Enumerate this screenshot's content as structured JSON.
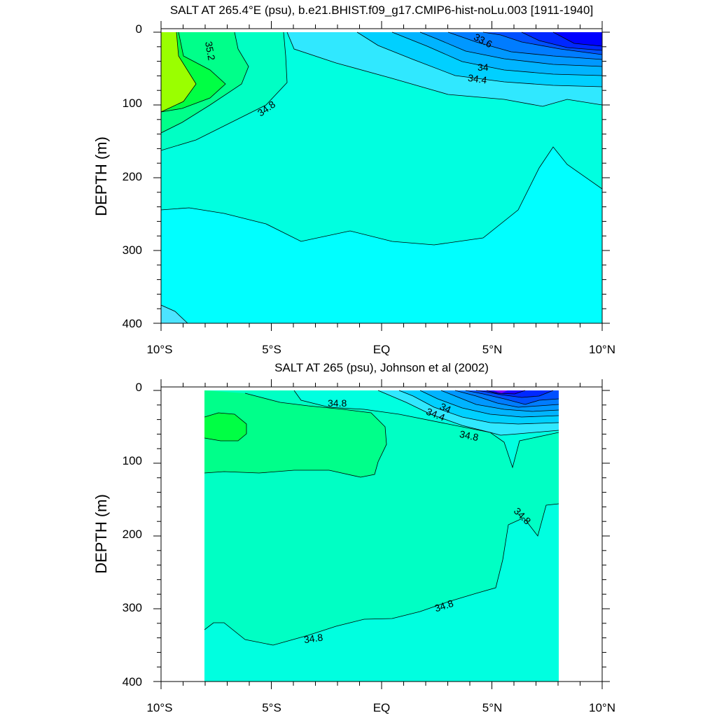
{
  "chart_data": [
    {
      "type": "heatmap",
      "title": "SALT AT 265.4°E (psu), b.e21.BHIST.f09_g17.CMIP6-hist-noLu.003 [1911-1940]",
      "xlabel": "",
      "ylabel": "DEPTH (m)",
      "xlim": [
        -10,
        10
      ],
      "ylim": [
        400,
        0
      ],
      "xtick_labels": [
        "10°S",
        "5°S",
        "EQ",
        "5°N",
        "10°N"
      ],
      "ytick_labels": [
        "0",
        "100",
        "200",
        "300",
        "400"
      ],
      "contour_labels": [
        "35.2",
        "34.8",
        "33.6",
        "34",
        "34.4"
      ],
      "contour_levels": [
        33.2,
        33.4,
        33.6,
        33.8,
        34.0,
        34.2,
        34.4,
        34.6,
        34.8,
        35.0,
        35.2,
        35.4
      ],
      "data_extent_lat": [
        -10,
        10
      ]
    },
    {
      "type": "heatmap",
      "title": "SALT AT 265 (psu), Johnson et al (2002)",
      "xlabel": "",
      "ylabel": "DEPTH (m)",
      "xlim": [
        -10,
        10
      ],
      "ylim": [
        400,
        0
      ],
      "xtick_labels": [
        "10°S",
        "5°S",
        "EQ",
        "5°N",
        "10°N"
      ],
      "ytick_labels": [
        "0",
        "100",
        "200",
        "300",
        "400"
      ],
      "contour_labels": [
        "34.8",
        "34",
        "34.4",
        "34.8",
        "34.8",
        "34.8",
        "34.8"
      ],
      "contour_levels": [
        33.2,
        33.4,
        33.6,
        33.8,
        34.0,
        34.2,
        34.4,
        34.6,
        34.8,
        35.0
      ],
      "data_extent_lat": [
        -8,
        8
      ]
    }
  ]
}
